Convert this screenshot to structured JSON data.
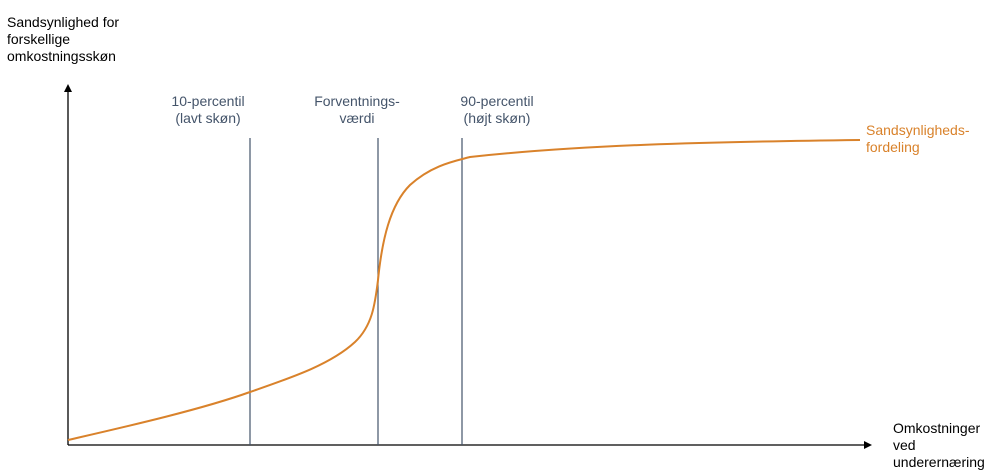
{
  "axes": {
    "y_label": "Sandsynlighed for\nforskellige\nomkostningsskøn",
    "x_label": "Omkostninger\nved\nunderernæring"
  },
  "markers": [
    {
      "id": "p10",
      "label": "10-percentil\n(lavt skøn)"
    },
    {
      "id": "ev",
      "label": "Forventnings-\nværdi"
    },
    {
      "id": "p90",
      "label": "90-percentil\n(højt skøn)"
    }
  ],
  "curve": {
    "label": "Sandsynligheds-\nfordeling"
  },
  "colors": {
    "axis": "#000000",
    "marker_line": "#44546a",
    "marker_text": "#44546a",
    "curve": "#d9822b"
  }
}
